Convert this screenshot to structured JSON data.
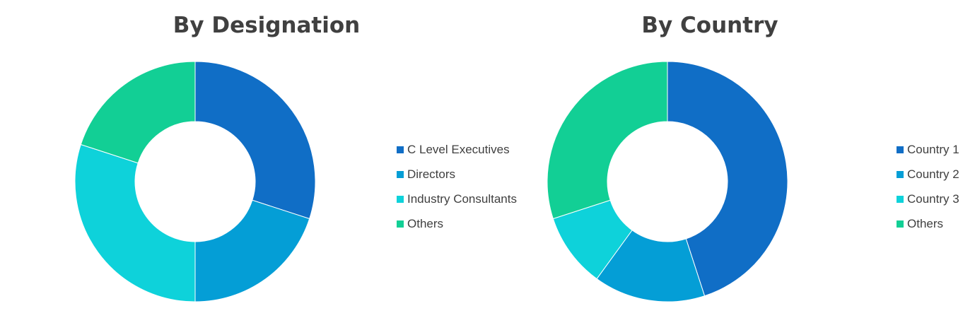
{
  "chart_data": [
    {
      "type": "pie",
      "variant": "donut",
      "title": "By Designation",
      "categories": [
        "C Level Executives",
        "Directors",
        "Industry Consultants",
        "Others"
      ],
      "values": [
        30,
        20,
        30,
        20
      ],
      "colors": [
        "#106EC6",
        "#049ED6",
        "#0ED2DA",
        "#12CF95"
      ],
      "legend": "right"
    },
    {
      "type": "pie",
      "variant": "donut",
      "title": "By Country",
      "categories": [
        "Country 1",
        "Country 2",
        "Country 3",
        "Others"
      ],
      "values": [
        45,
        15,
        10,
        30
      ],
      "colors": [
        "#106EC6",
        "#049ED6",
        "#0ED2DA",
        "#12CF95"
      ],
      "legend": "right"
    }
  ]
}
